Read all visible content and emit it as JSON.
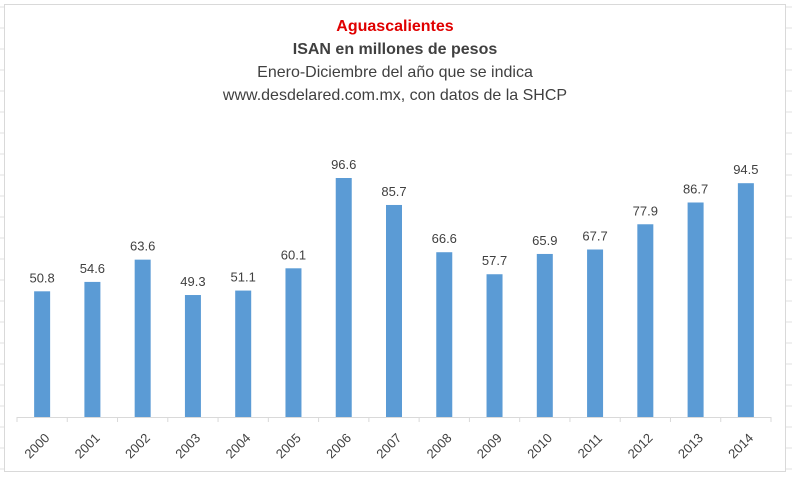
{
  "chart_data": {
    "type": "bar",
    "title": "Aguascalientes",
    "subtitle": "ISAN en millones de pesos",
    "subtitle_lines": [
      "Enero-Diciembre del año que se indica",
      "www.desdelared.com.mx, con datos de la SHCP"
    ],
    "categories": [
      "2000",
      "2001",
      "2002",
      "2003",
      "2004",
      "2005",
      "2006",
      "2007",
      "2008",
      "2009",
      "2010",
      "2011",
      "2012",
      "2013",
      "2014"
    ],
    "values": [
      50.8,
      54.6,
      63.6,
      49.3,
      51.1,
      60.1,
      96.6,
      85.7,
      66.6,
      57.7,
      65.9,
      67.7,
      77.9,
      86.7,
      94.5
    ],
    "data_labels": [
      "50.8",
      "54.6",
      "63.6",
      "49.3",
      "51.1",
      "60.1",
      "96.6",
      "85.7",
      "66.6",
      "57.7",
      "65.9",
      "67.7",
      "77.9",
      "86.7",
      "94.5"
    ],
    "ylim": [
      0,
      100
    ],
    "grid": false,
    "legend": "none",
    "colors": {
      "bar": "#5b9bd5",
      "title": "#e00000",
      "text": "#404040",
      "axis": "#d9d9d9"
    }
  }
}
